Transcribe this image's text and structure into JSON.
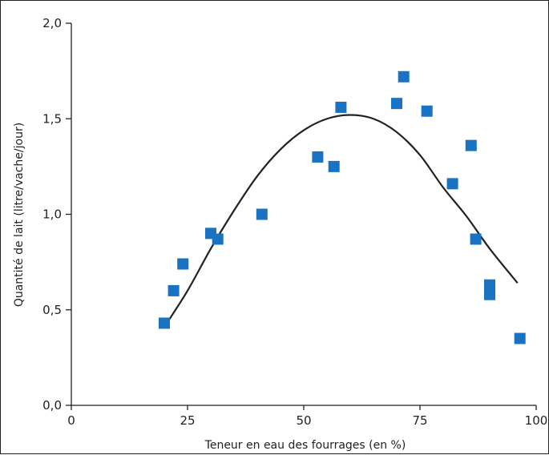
{
  "chart_data": {
    "type": "scatter",
    "title": "",
    "xlabel": "Teneur en eau des fourrages (en %)",
    "ylabel": "Quantité de lait (litre/vache/jour)",
    "xlim": [
      0,
      100
    ],
    "ylim": [
      0,
      2.0
    ],
    "x_ticks": [
      0,
      25,
      50,
      75,
      100
    ],
    "x_tick_labels": [
      "0",
      "25",
      "50",
      "75",
      "100"
    ],
    "y_ticks": [
      0,
      0.5,
      1.0,
      1.5,
      2.0
    ],
    "y_tick_labels": [
      "0,0",
      "0,5",
      "1,0",
      "1,5",
      "2,0"
    ],
    "grid": false,
    "marker_color": "#1a73c2",
    "curve_color": "#222222",
    "points": [
      {
        "x": 20,
        "y": 0.43
      },
      {
        "x": 22,
        "y": 0.6
      },
      {
        "x": 24,
        "y": 0.74
      },
      {
        "x": 30,
        "y": 0.9
      },
      {
        "x": 31.5,
        "y": 0.87
      },
      {
        "x": 41,
        "y": 1.0
      },
      {
        "x": 53,
        "y": 1.3
      },
      {
        "x": 56.5,
        "y": 1.25
      },
      {
        "x": 58,
        "y": 1.56
      },
      {
        "x": 70,
        "y": 1.58
      },
      {
        "x": 71.5,
        "y": 1.72
      },
      {
        "x": 76.5,
        "y": 1.54
      },
      {
        "x": 82,
        "y": 1.16
      },
      {
        "x": 86,
        "y": 1.36
      },
      {
        "x": 87,
        "y": 0.87
      },
      {
        "x": 90,
        "y": 0.63
      },
      {
        "x": 90,
        "y": 0.58
      },
      {
        "x": 96.5,
        "y": 0.35
      }
    ],
    "fit_curve": [
      {
        "x": 20,
        "y": 0.41
      },
      {
        "x": 25,
        "y": 0.6
      },
      {
        "x": 30,
        "y": 0.82
      },
      {
        "x": 35,
        "y": 1.02
      },
      {
        "x": 40,
        "y": 1.2
      },
      {
        "x": 45,
        "y": 1.34
      },
      {
        "x": 50,
        "y": 1.44
      },
      {
        "x": 55,
        "y": 1.5
      },
      {
        "x": 60,
        "y": 1.52
      },
      {
        "x": 65,
        "y": 1.5
      },
      {
        "x": 70,
        "y": 1.43
      },
      {
        "x": 75,
        "y": 1.31
      },
      {
        "x": 80,
        "y": 1.14
      },
      {
        "x": 85,
        "y": 0.99
      },
      {
        "x": 90,
        "y": 0.82
      },
      {
        "x": 96,
        "y": 0.64
      }
    ]
  }
}
